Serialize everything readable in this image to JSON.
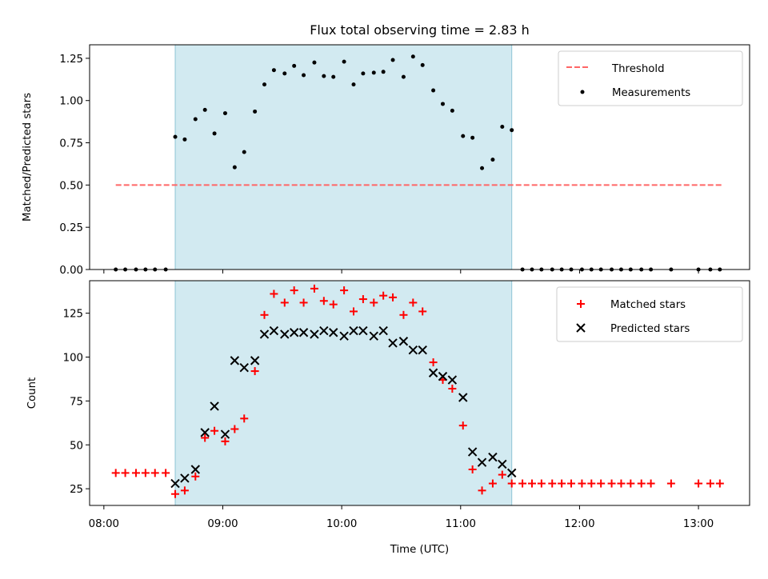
{
  "chart_data": [
    {
      "type": "scatter",
      "title": "Flux total observing time = 2.83 h",
      "xlabel": "",
      "ylabel": "Matched/Predicted stars",
      "xlim": [
        7.88,
        13.43
      ],
      "ylim": [
        0.0,
        1.33
      ],
      "yticks": [
        0.0,
        0.25,
        0.5,
        0.75,
        1.0,
        1.25
      ],
      "ytick_labels": [
        "0.00",
        "0.25",
        "0.50",
        "0.75",
        "1.00",
        "1.25"
      ],
      "shaded_span": [
        8.6,
        11.43
      ],
      "shaded_color": "#add8e6",
      "legend": {
        "position": "upper right",
        "entries": [
          "Threshold",
          "Measurements"
        ]
      },
      "series": [
        {
          "name": "Threshold",
          "kind": "dashed-line",
          "color": "#ff6666",
          "x": [
            8.1,
            13.2
          ],
          "y": [
            0.5,
            0.5
          ]
        },
        {
          "name": "Measurements",
          "kind": "dot",
          "color": "#000000",
          "x": [
            8.1,
            8.18,
            8.27,
            8.35,
            8.43,
            8.52,
            8.6,
            8.68,
            8.77,
            8.85,
            8.93,
            9.02,
            9.1,
            9.18,
            9.27,
            9.35,
            9.43,
            9.52,
            9.6,
            9.68,
            9.77,
            9.85,
            9.93,
            10.02,
            10.1,
            10.18,
            10.27,
            10.35,
            10.43,
            10.52,
            10.6,
            10.68,
            10.77,
            10.85,
            10.93,
            11.02,
            11.1,
            11.18,
            11.27,
            11.35,
            11.43,
            11.52,
            11.6,
            11.68,
            11.77,
            11.85,
            11.93,
            12.02,
            12.1,
            12.18,
            12.27,
            12.35,
            12.43,
            12.52,
            12.6,
            12.77,
            13.0,
            13.1,
            13.18
          ],
          "y": [
            0,
            0,
            0,
            0,
            0,
            0,
            0.785,
            0.77,
            0.89,
            0.945,
            0.805,
            0.925,
            0.605,
            0.695,
            0.935,
            1.095,
            1.18,
            1.16,
            1.205,
            1.15,
            1.225,
            1.145,
            1.14,
            1.23,
            1.095,
            1.16,
            1.165,
            1.17,
            1.24,
            1.14,
            1.26,
            1.21,
            1.06,
            0.98,
            0.94,
            0.79,
            0.78,
            0.6,
            0.65,
            0.845,
            0.825,
            0,
            0,
            0,
            0,
            0,
            0,
            0,
            0,
            0,
            0,
            0,
            0,
            0,
            0,
            0,
            0,
            0,
            0
          ]
        }
      ]
    },
    {
      "type": "scatter",
      "title": "",
      "xlabel": "Time (UTC)",
      "ylabel": "Count",
      "xlim": [
        7.88,
        13.43
      ],
      "ylim": [
        15.5,
        143.5
      ],
      "xticks": [
        8,
        9,
        10,
        11,
        12,
        13
      ],
      "xtick_labels": [
        "08:00",
        "09:00",
        "10:00",
        "11:00",
        "12:00",
        "13:00"
      ],
      "yticks": [
        25,
        50,
        75,
        100,
        125
      ],
      "ytick_labels": [
        "25",
        "50",
        "75",
        "100",
        "125"
      ],
      "shaded_span": [
        8.6,
        11.43
      ],
      "shaded_color": "#add8e6",
      "legend": {
        "position": "upper right",
        "entries": [
          "Matched stars",
          "Predicted stars"
        ]
      },
      "series": [
        {
          "name": "Matched stars",
          "kind": "plus",
          "color": "#ff0000",
          "x": [
            8.1,
            8.18,
            8.27,
            8.35,
            8.43,
            8.52,
            8.6,
            8.68,
            8.77,
            8.85,
            8.93,
            9.02,
            9.1,
            9.18,
            9.27,
            9.35,
            9.43,
            9.52,
            9.6,
            9.68,
            9.77,
            9.85,
            9.93,
            10.02,
            10.1,
            10.18,
            10.27,
            10.35,
            10.43,
            10.52,
            10.6,
            10.68,
            10.77,
            10.85,
            10.93,
            11.02,
            11.1,
            11.18,
            11.27,
            11.35,
            11.43,
            11.52,
            11.6,
            11.68,
            11.77,
            11.85,
            11.93,
            12.02,
            12.1,
            12.18,
            12.27,
            12.35,
            12.43,
            12.52,
            12.6,
            12.77,
            13.0,
            13.1,
            13.18
          ],
          "y": [
            34,
            34,
            34,
            34,
            34,
            34,
            22,
            24,
            32,
            54,
            58,
            52,
            59,
            65,
            92,
            124,
            136,
            131,
            138,
            131,
            139,
            132,
            130,
            138,
            126,
            133,
            131,
            135,
            134,
            124,
            131,
            126,
            97,
            87,
            82,
            61,
            36,
            24,
            28,
            33,
            28,
            28,
            28,
            28,
            28,
            28,
            28,
            28,
            28,
            28,
            28,
            28,
            28,
            28,
            28,
            28,
            28,
            28,
            28
          ]
        },
        {
          "name": "Predicted stars",
          "kind": "cross",
          "color": "#000000",
          "x": [
            8.6,
            8.68,
            8.77,
            8.85,
            8.93,
            9.02,
            9.1,
            9.18,
            9.27,
            9.35,
            9.43,
            9.52,
            9.6,
            9.68,
            9.77,
            9.85,
            9.93,
            10.02,
            10.1,
            10.18,
            10.27,
            10.35,
            10.43,
            10.52,
            10.6,
            10.68,
            10.77,
            10.85,
            10.93,
            11.02,
            11.1,
            11.18,
            11.27,
            11.35,
            11.43
          ],
          "y": [
            28,
            31,
            36,
            57,
            72,
            56,
            98,
            94,
            98,
            113,
            115,
            113,
            114,
            114,
            113,
            115,
            114,
            112,
            115,
            115,
            112,
            115,
            108,
            109,
            104,
            104,
            91,
            89,
            87,
            77,
            46,
            40,
            43,
            39,
            34
          ]
        }
      ]
    }
  ]
}
